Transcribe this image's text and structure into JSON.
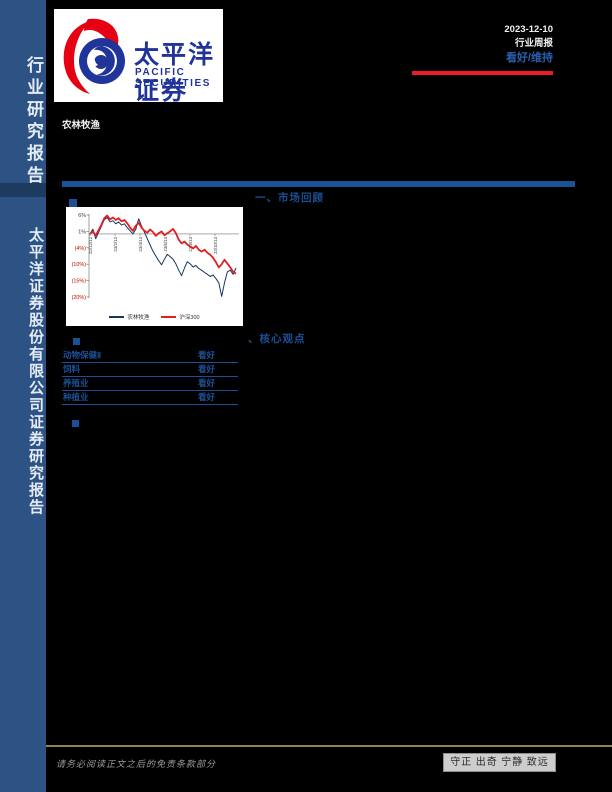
{
  "page": {
    "date": "2023-12-10",
    "report_type": "行业周报",
    "rating": "看好/维持",
    "industry": "农林牧渔"
  },
  "logo": {
    "name_cn": "太平洋证券",
    "name_en": "PACIFIC SECURITIES"
  },
  "sidebar": {
    "top_text": "行业研究报告",
    "bottom_text": "太平洋证券股份有限公司证券研究报告"
  },
  "sections": [
    {
      "label": "一、市场回顾"
    },
    {
      "label": "、核心观点"
    }
  ],
  "ratings_table": {
    "rows": [
      {
        "name": "动物保健Ⅱ",
        "rating": "看好"
      },
      {
        "name": "饲料",
        "rating": "看好"
      },
      {
        "name": "养殖业",
        "rating": "看好"
      },
      {
        "name": "种植业",
        "rating": "看好"
      }
    ]
  },
  "footer": {
    "disclaimer": "请务必阅读正文之后的免责条款部分",
    "motto": "守正 出奇 宁静 致远"
  },
  "colors": {
    "sidebar_blue": "#2d5384",
    "header_blue": "#1d4f94",
    "accent_red": "#ed1c24",
    "footer_gold": "#8f844a",
    "negative_tick_red": "#c00000"
  },
  "chart_data": {
    "type": "line",
    "title": "",
    "xlabel": "",
    "ylabel": "",
    "ylim": [
      -20,
      6
    ],
    "grid": false,
    "legend_position": "bottom",
    "x_tick_labels": [
      "22/12/12",
      "23/2/13",
      "23/4/13",
      "23/6/13",
      "23/8/13",
      "23/10/13"
    ],
    "y_tick_labels": [
      "6%",
      "1%",
      "(4%)",
      "(10%)",
      "(15%)",
      "(20%)"
    ],
    "y_tick_values": [
      6,
      0.8,
      -4.4,
      -9.6,
      -14.8,
      -20
    ],
    "series": [
      {
        "name": "农林牧渔",
        "color": "#17375e",
        "width": 1,
        "values": [
          0,
          1.5,
          -1.5,
          0.5,
          2.5,
          4.5,
          5.2,
          3.8,
          4.2,
          3.2,
          3.8,
          2.8,
          3.2,
          2.0,
          1.0,
          0.0,
          1.5,
          4.8,
          2.5,
          0.5,
          -1.5,
          -3.5,
          -5.5,
          -7.0,
          -8.5,
          -9.8,
          -8.0,
          -6.5,
          -7.2,
          -8.0,
          -9.5,
          -11.5,
          -13.2,
          -10.8,
          -8.8,
          -9.5,
          -10.5,
          -10.0,
          -11.0,
          -11.5,
          -12.2,
          -12.8,
          -13.5,
          -13.0,
          -14.2,
          -15.5,
          -19.8,
          -15.5,
          -12.0,
          -11.5,
          -12.8,
          -10.8
        ]
      },
      {
        "name": "沪深300",
        "color": "#e02020",
        "width": 1.8,
        "values": [
          0,
          0.8,
          -0.5,
          1.2,
          3.0,
          5.0,
          5.8,
          4.6,
          5.2,
          4.4,
          5.0,
          4.0,
          4.4,
          3.4,
          2.0,
          1.0,
          2.6,
          3.6,
          2.0,
          1.0,
          0.4,
          1.4,
          0.6,
          -0.6,
          0.2,
          0.8,
          -0.4,
          0.2,
          0.8,
          1.6,
          0.2,
          -1.8,
          -3.0,
          -2.4,
          -3.4,
          -4.0,
          -4.6,
          -3.8,
          -5.0,
          -5.6,
          -5.0,
          -6.0,
          -6.6,
          -7.6,
          -9.0,
          -10.6,
          -9.6,
          -8.2,
          -9.4,
          -10.6,
          -12.0,
          -12.6
        ]
      }
    ]
  }
}
